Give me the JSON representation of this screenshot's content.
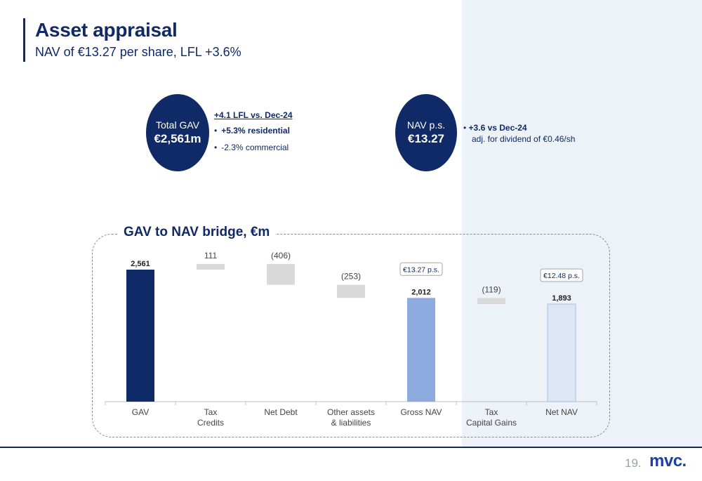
{
  "header": {
    "title": "Asset appraisal",
    "subtitle": "NAV of €13.27 per share, LFL +3.6%"
  },
  "gav_kpi": {
    "label": "Total GAV",
    "value": "€2,561m",
    "heading": "+4.1 LFL vs. Dec-24",
    "bullets": [
      "+5.3% residential",
      "-2.3% commercial"
    ]
  },
  "nav_kpi": {
    "label": "NAV p.s.",
    "value": "€13.27",
    "line1": "+3.6 vs Dec-24",
    "line2": "adj. for dividend of €0.46/sh"
  },
  "bridge": {
    "title": "GAV to NAV bridge, €m"
  },
  "chart_data": {
    "type": "bar",
    "subtype": "waterfall",
    "categories": [
      "GAV",
      "Tax\nCredits",
      "Net Debt",
      "Other assets\n& liabilities",
      "Gross NAV",
      "Tax\nCapital Gains",
      "Net NAV"
    ],
    "values": [
      2561,
      111,
      -406,
      -253,
      2012,
      -119,
      1893
    ],
    "kinds": [
      "total",
      "delta",
      "delta",
      "delta",
      "total",
      "delta",
      "total"
    ],
    "data_labels": [
      "2,561",
      "111",
      "(406)",
      "(253)",
      "2,012",
      "(119)",
      "1,893"
    ],
    "per_share_labels": [
      null,
      null,
      null,
      null,
      "€13.27 p.s.",
      null,
      "€12.48 p.s."
    ],
    "bar_colors": [
      "#0f2a66",
      "#d9d9d9",
      "#d9d9d9",
      "#d9d9d9",
      "#8eaadf",
      "#d9d9d9",
      "#dce6f5"
    ],
    "ylim": [
      0,
      2800
    ]
  },
  "footer": {
    "page": "19.",
    "logo": "mvc."
  }
}
